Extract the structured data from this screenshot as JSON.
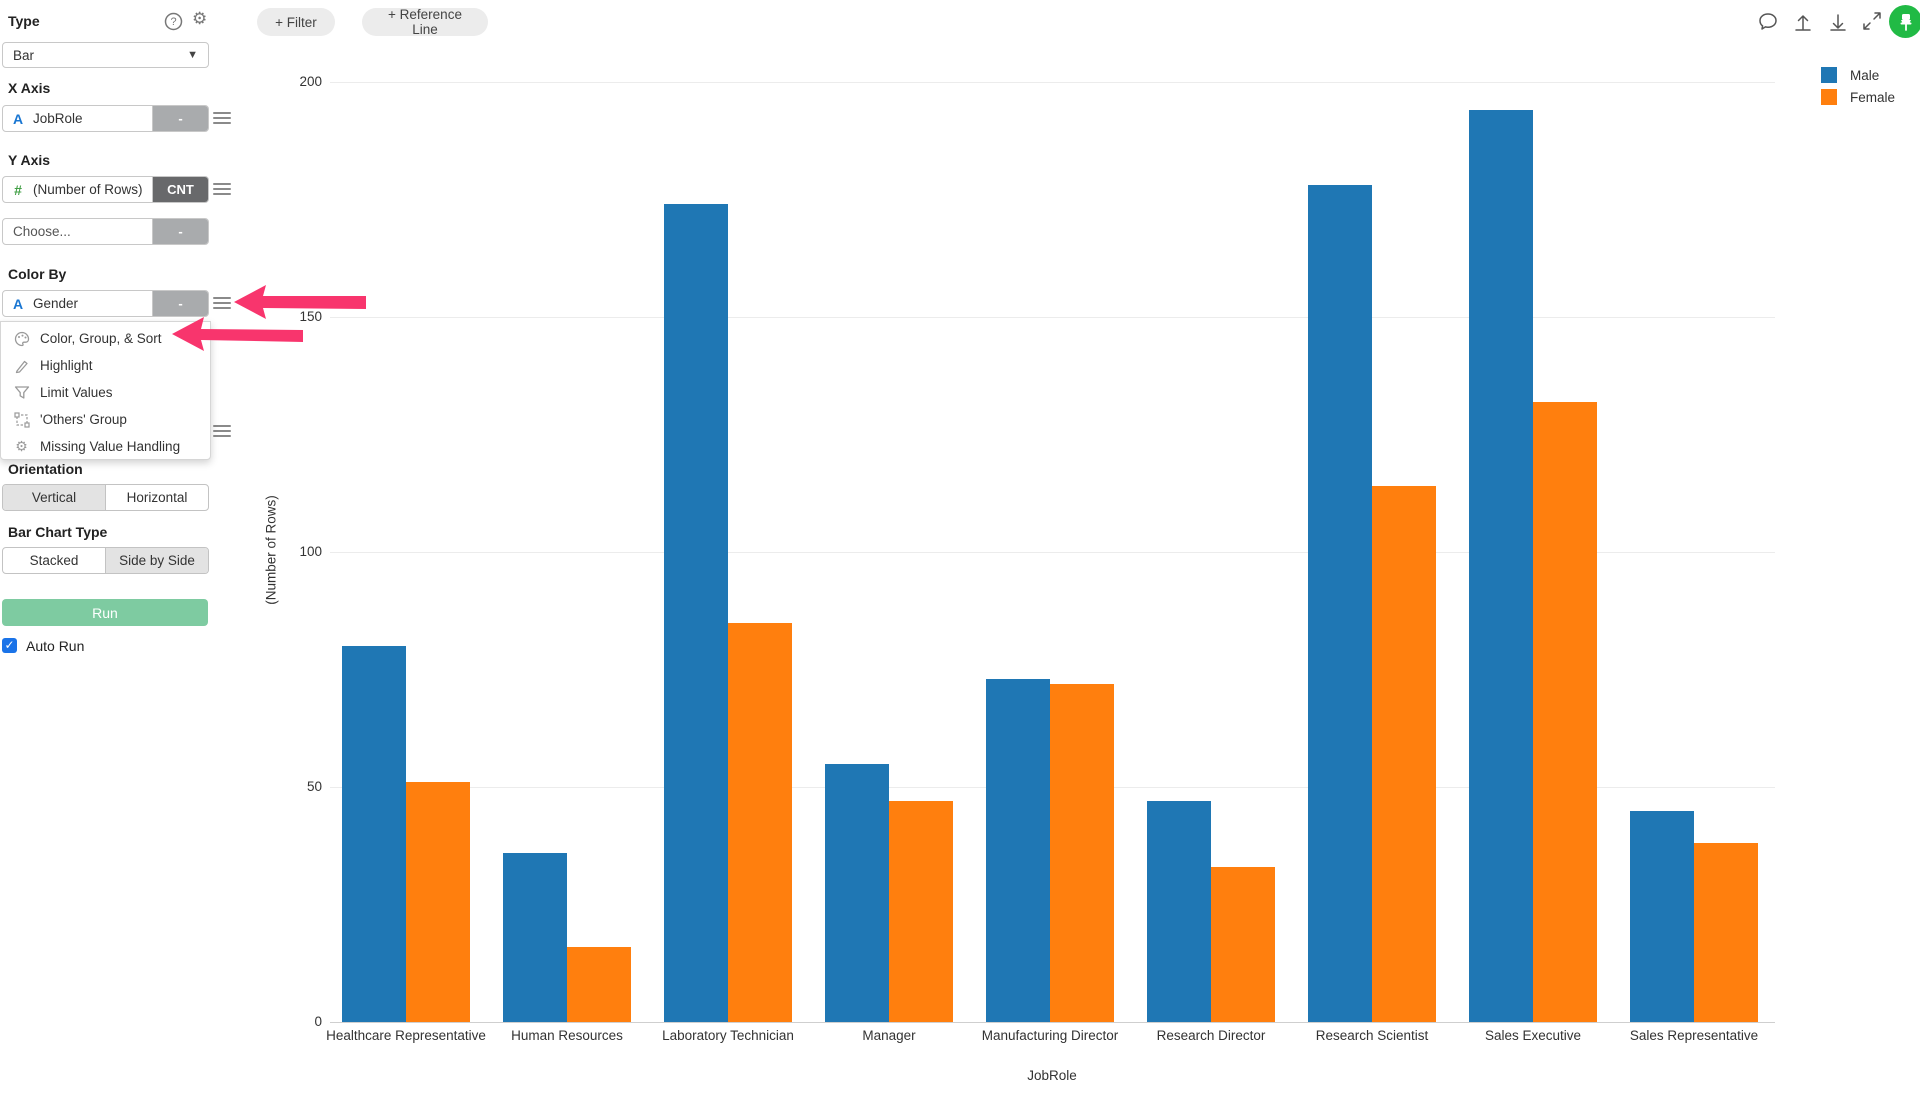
{
  "sidebar": {
    "type_label": "Type",
    "type_value": "Bar",
    "x_axis": {
      "label": "X Axis",
      "field_type": "A",
      "field": "JobRole",
      "agg": "-"
    },
    "y_axis": {
      "label": "Y Axis",
      "field_type": "#",
      "field": "(Number of Rows)",
      "agg": "CNT"
    },
    "choose": {
      "placeholder": "Choose...",
      "agg": "-"
    },
    "color_by": {
      "label": "Color By",
      "field_type": "A",
      "field": "Gender",
      "agg": "-"
    },
    "menu": {
      "items": [
        {
          "icon": "palette-icon",
          "label": "Color, Group, & Sort"
        },
        {
          "icon": "highlighter-icon",
          "label": "Highlight"
        },
        {
          "icon": "funnel-icon",
          "label": "Limit Values"
        },
        {
          "icon": "object-group-icon",
          "label": "'Others' Group"
        },
        {
          "icon": "gear-icon",
          "label": "Missing Value Handling"
        }
      ]
    },
    "orientation": {
      "label": "Orientation",
      "options": [
        "Vertical",
        "Horizontal"
      ],
      "selected": "Vertical"
    },
    "bar_chart_type": {
      "label": "Bar Chart Type",
      "options": [
        "Stacked",
        "Side by Side"
      ],
      "selected": "Side by Side"
    },
    "run_label": "Run",
    "auto_run_label": "Auto Run",
    "auto_run_checked": true,
    "checkmark": "✓"
  },
  "toolbar": {
    "filter_label": "+ Filter",
    "reference_line_label": "+ Reference Line"
  },
  "chart_data": {
    "type": "bar",
    "bar_mode": "grouped",
    "categories": [
      "Healthcare Representative",
      "Human Resources",
      "Laboratory Technician",
      "Manager",
      "Manufacturing Director",
      "Research Director",
      "Research Scientist",
      "Sales Executive",
      "Sales Representative"
    ],
    "series": [
      {
        "name": "Male",
        "color": "#1f77b4",
        "values": [
          80,
          36,
          174,
          55,
          73,
          47,
          178,
          194,
          45
        ]
      },
      {
        "name": "Female",
        "color": "#ff7f0e",
        "values": [
          51,
          16,
          85,
          47,
          72,
          33,
          114,
          132,
          38
        ]
      }
    ],
    "xlabel": "JobRole",
    "ylabel": "(Number of Rows)",
    "yticks": [
      0,
      50,
      100,
      150,
      200
    ],
    "ylim": [
      0,
      200
    ],
    "grid": true,
    "legend_position": "top-right"
  },
  "colors": {
    "male": "#1f77b4",
    "female": "#ff7f0e",
    "annotation_arrow": "#f8356d",
    "run_button": "#7ecba1",
    "avatar": "#21ba45",
    "checkbox": "#1a73e8"
  }
}
